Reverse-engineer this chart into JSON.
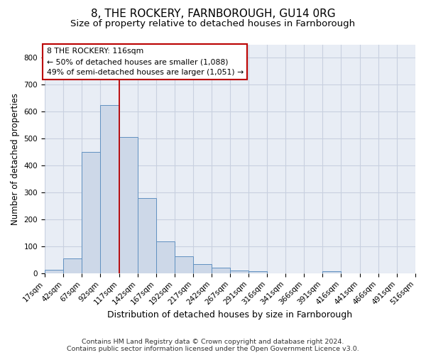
{
  "title": "8, THE ROCKERY, FARNBOROUGH, GU14 0RG",
  "subtitle": "Size of property relative to detached houses in Farnborough",
  "xlabel": "Distribution of detached houses by size in Farnborough",
  "ylabel": "Number of detached properties",
  "footer_line1": "Contains HM Land Registry data © Crown copyright and database right 2024.",
  "footer_line2": "Contains public sector information licensed under the Open Government Licence v3.0.",
  "bin_edges": [
    17,
    42,
    67,
    92,
    117,
    142,
    167,
    192,
    217,
    242,
    267,
    291,
    316,
    341,
    366,
    391,
    416,
    441,
    466,
    491,
    516
  ],
  "bin_counts": [
    13,
    55,
    450,
    625,
    505,
    280,
    118,
    63,
    35,
    20,
    10,
    8,
    0,
    0,
    0,
    8,
    0,
    0,
    0,
    0
  ],
  "bar_facecolor": "#cdd8e8",
  "bar_edgecolor": "#6090c0",
  "grid_color": "#c8d0e0",
  "background_color": "#e8edf5",
  "vline_x": 117,
  "vline_color": "#bb0000",
  "annotation_line1": "8 THE ROCKERY: 116sqm",
  "annotation_line2": "← 50% of detached houses are smaller (1,088)",
  "annotation_line3": "49% of semi-detached houses are larger (1,051) →",
  "annotation_box_color": "#bb0000",
  "ylim": [
    0,
    850
  ],
  "yticks": [
    0,
    100,
    200,
    300,
    400,
    500,
    600,
    700,
    800
  ],
  "title_fontsize": 11,
  "subtitle_fontsize": 9.5,
  "xlabel_fontsize": 9,
  "ylabel_fontsize": 8.5,
  "tick_fontsize": 7.5,
  "annotation_fontsize": 7.8,
  "footer_fontsize": 6.8
}
